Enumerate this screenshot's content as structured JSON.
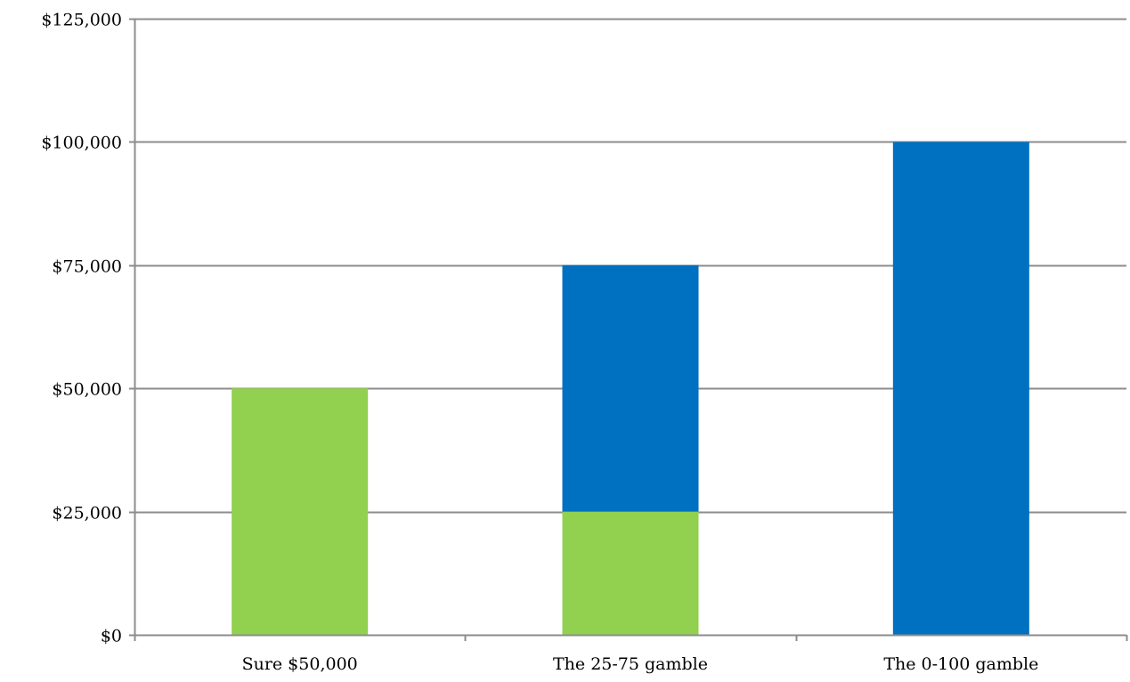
{
  "chart_data": {
    "type": "bar",
    "stacked": true,
    "title": "",
    "xlabel": "",
    "ylabel": "",
    "categories": [
      "Sure $50,000",
      "The 25-75 gamble",
      "The 0-100 gamble"
    ],
    "series": [
      {
        "values": [
          50000,
          25000,
          0
        ],
        "color": "#92d050"
      },
      {
        "values": [
          0,
          50000,
          100000
        ],
        "color": "#0070c0"
      }
    ],
    "ylim": [
      0,
      125000
    ],
    "yticks": [
      0,
      25000,
      50000,
      75000,
      100000,
      125000
    ],
    "ytick_labels": [
      "$0",
      "$25,000",
      "$50,000",
      "$75,000",
      "$100,000",
      "$125,000"
    ],
    "grid": true,
    "legend": "none"
  }
}
